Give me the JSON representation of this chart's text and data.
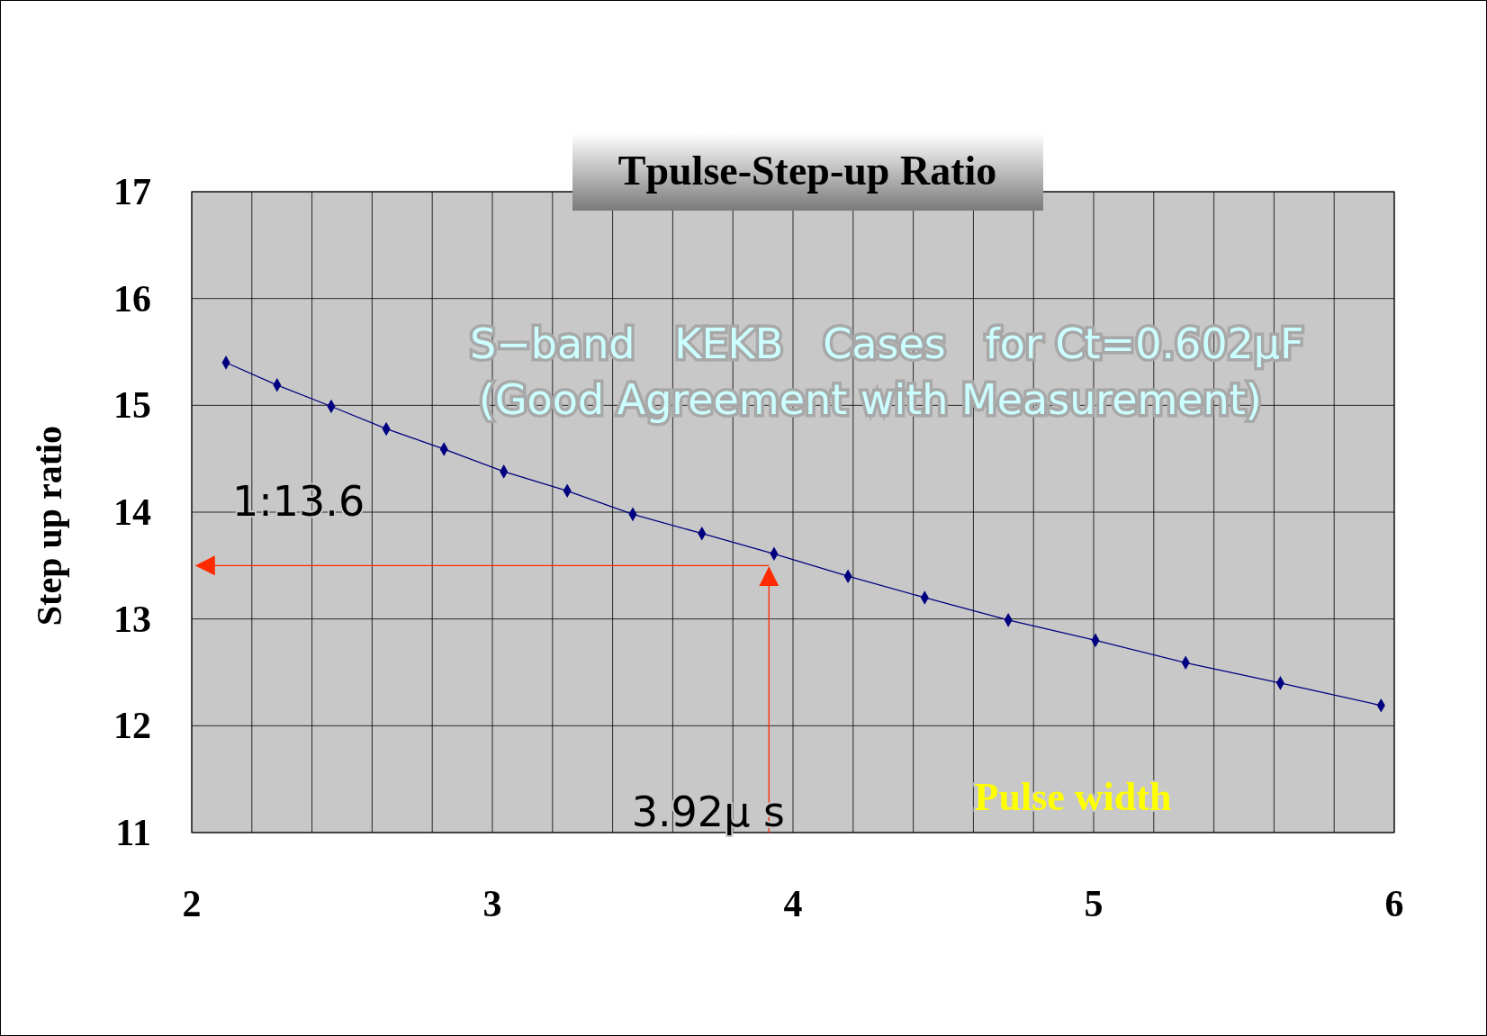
{
  "chart_data": {
    "type": "line",
    "title": "Tpulse-Step-up Ratio",
    "xlabel": "Pulse width",
    "ylabel": "Step up ratio",
    "x": [
      2.114,
      2.284,
      2.464,
      2.647,
      2.839,
      3.038,
      3.249,
      3.467,
      3.697,
      3.937,
      4.183,
      4.438,
      4.716,
      5.006,
      5.306,
      5.621,
      5.956
    ],
    "series": [
      {
        "color": "#000080",
        "values": [
          15.4,
          15.19,
          14.99,
          14.78,
          14.59,
          14.38,
          14.2,
          13.98,
          13.8,
          13.61,
          13.4,
          13.2,
          12.99,
          12.8,
          12.59,
          12.4,
          12.19
        ]
      }
    ],
    "marker": "diamond",
    "line_style": "solid",
    "grid": true,
    "xlim": [
      2,
      6
    ],
    "ylim": [
      11,
      17
    ],
    "xticks": [
      2,
      {
        "value": 2.2,
        "label": null
      },
      {
        "value": 2.4,
        "label": null
      },
      {
        "value": 2.6,
        "label": null
      },
      {
        "value": 2.8,
        "label": null
      },
      3,
      {
        "value": 3.2,
        "label": null
      },
      {
        "value": 3.4,
        "label": null
      },
      {
        "value": 3.6,
        "label": null
      },
      {
        "value": 3.8,
        "label": null
      },
      4,
      {
        "value": 4.2,
        "label": null
      },
      {
        "value": 4.4,
        "label": null
      },
      {
        "value": 4.6,
        "label": null
      },
      {
        "value": 4.8,
        "label": null
      },
      5,
      {
        "value": 5.2,
        "label": null
      },
      {
        "value": 5.4,
        "label": null
      },
      {
        "value": 5.6,
        "label": null
      },
      {
        "value": 5.8,
        "label": null
      },
      6
    ],
    "yticks": [
      11,
      12,
      13,
      14,
      15,
      16,
      17
    ],
    "ref_lines": [
      {
        "axis": "y",
        "value": 13.5,
        "color": "#ff2a00"
      },
      {
        "axis": "x",
        "value": 3.92,
        "color": "#ff2a00"
      }
    ],
    "annotations": [
      "S−band   KEKB   Cases   for Ct=0.602μF",
      "(Good Agreement with Measurement)",
      "1:13.6",
      "3.92μ s"
    ]
  }
}
